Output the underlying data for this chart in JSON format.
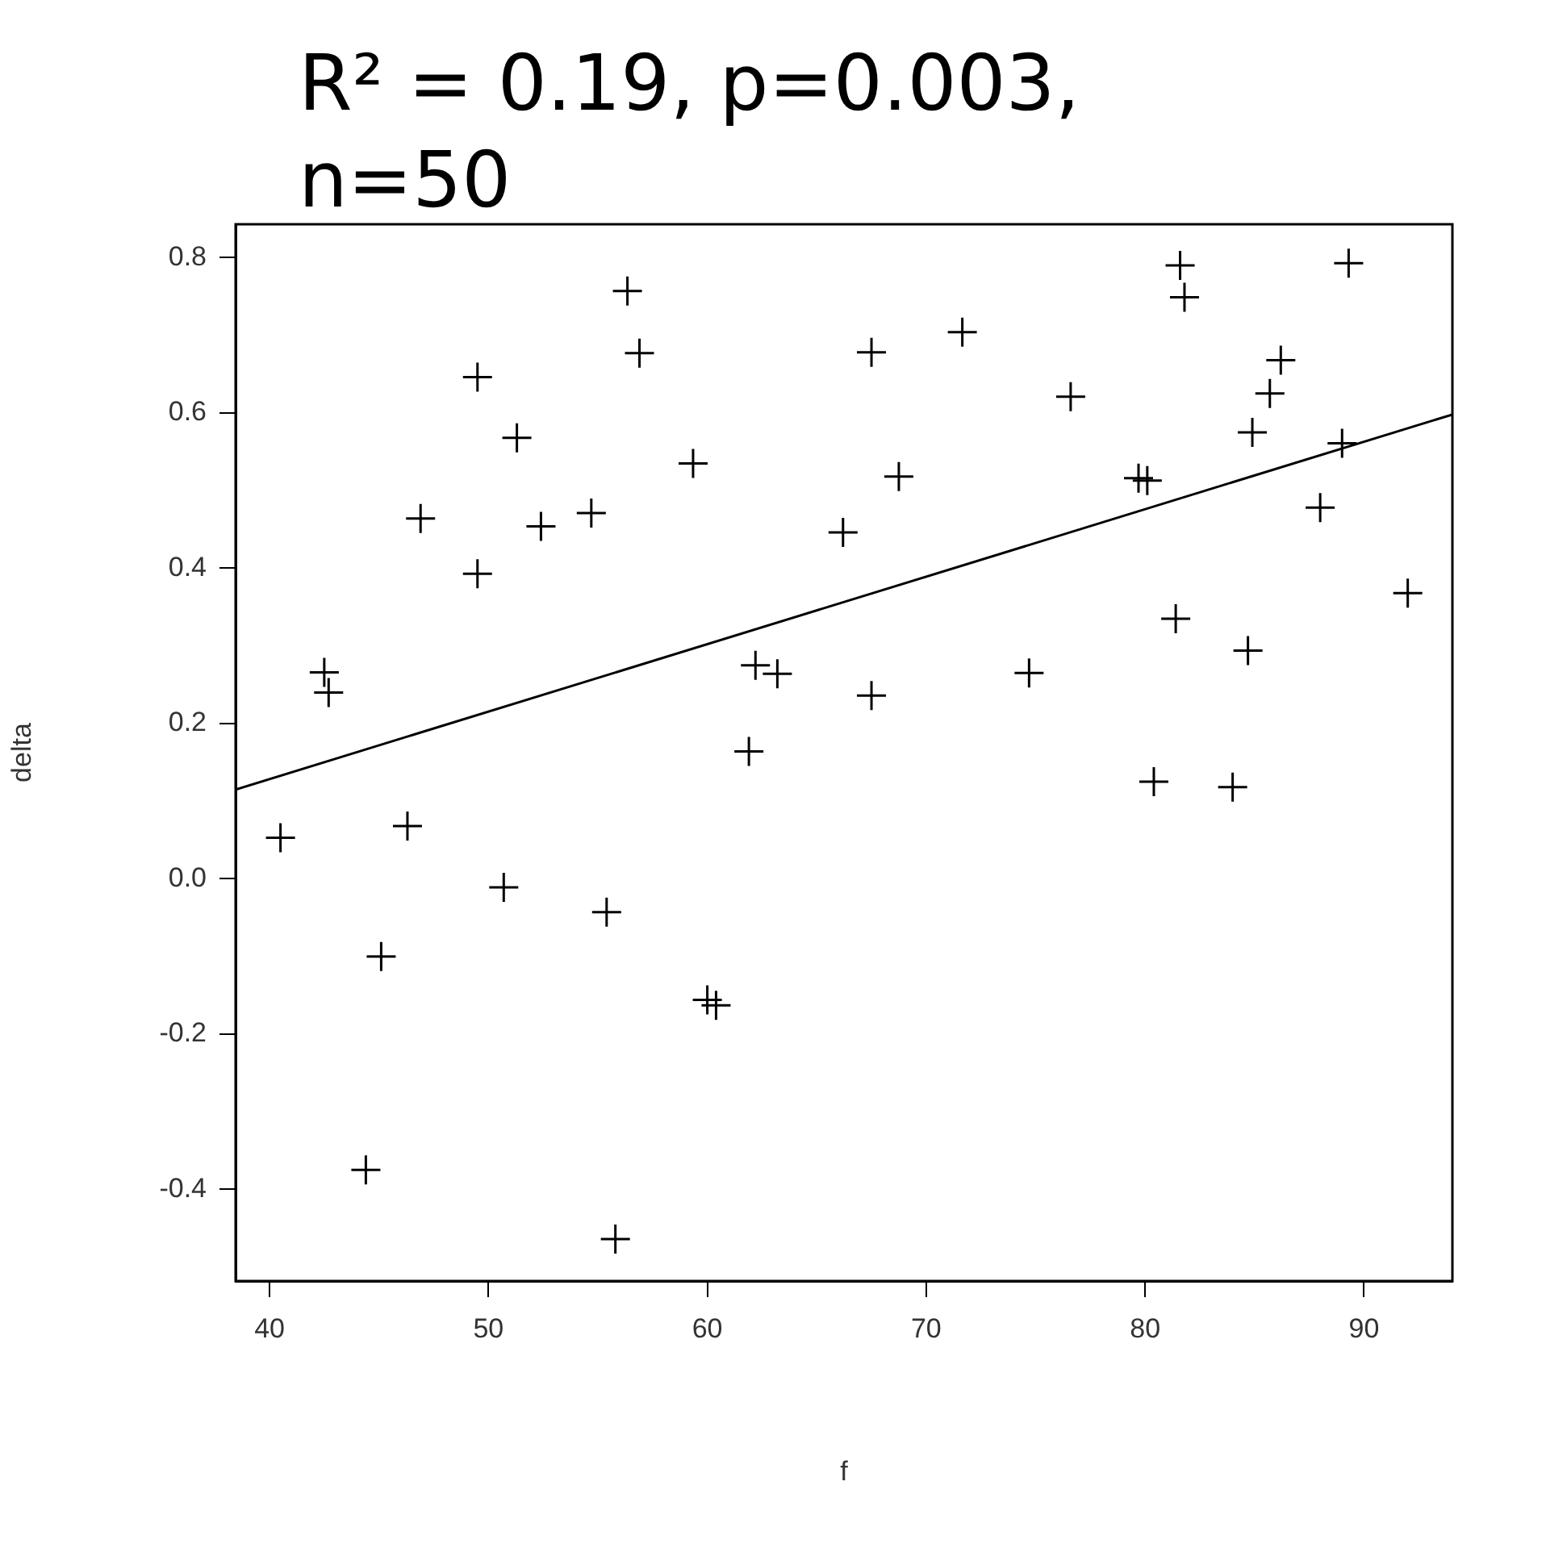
{
  "chart_data": {
    "type": "scatter",
    "title": "R² = 0.19, p=0.003, n=50",
    "xlabel": "f",
    "ylabel": "delta",
    "xlim": [
      38.45,
      94.04
    ],
    "ylim": [
      -0.518,
      0.843
    ],
    "xticks": [
      40,
      50,
      60,
      70,
      80,
      90
    ],
    "yticks": [
      -0.4,
      -0.2,
      {
        "value": 0,
        "label": "0.0"
      },
      0.2,
      0.4,
      0.6,
      0.8
    ],
    "grid": false,
    "legend": false,
    "series": [
      {
        "color": "#000000",
        "marker": "cross",
        "x": [
          40.5,
          42.5,
          42.7,
          44.4,
          45.1,
          46.3,
          46.9,
          49.5,
          49.5,
          50.7,
          51.3,
          52.4,
          54.7,
          55.4,
          55.8,
          56.35,
          56.9,
          59.35,
          60.0,
          60.4,
          61.9,
          62.2,
          63.2,
          66.2,
          67.5,
          67.5,
          68.75,
          71.65,
          74.7,
          76.6,
          79.7,
          80.1,
          80.4,
          81.4,
          81.6,
          81.8,
          84.0,
          84.7,
          84.9,
          85.7,
          86.2,
          88.0,
          89.0,
          89.3,
          92.0
        ],
        "values": [
          0.053,
          0.266,
          0.24,
          -0.375,
          -0.1,
          0.068,
          0.464,
          0.646,
          0.393,
          -0.011,
          0.568,
          0.454,
          0.471,
          -0.043,
          -0.464,
          0.757,
          0.677,
          0.535,
          -0.156,
          -0.163,
          0.164,
          0.275,
          0.264,
          0.446,
          0.236,
          0.678,
          0.518,
          0.704,
          0.265,
          0.621,
          0.516,
          0.513,
          0.125,
          0.335,
          0.79,
          0.749,
          0.118,
          0.294,
          0.575,
          0.625,
          0.668,
          0.478,
          0.561,
          0.793,
          0.368
        ]
      },
      {
        "type": "line",
        "color": "#000000",
        "x": [
          38.45,
          94.04
        ],
        "values": [
          0.115,
          0.598
        ]
      }
    ]
  }
}
